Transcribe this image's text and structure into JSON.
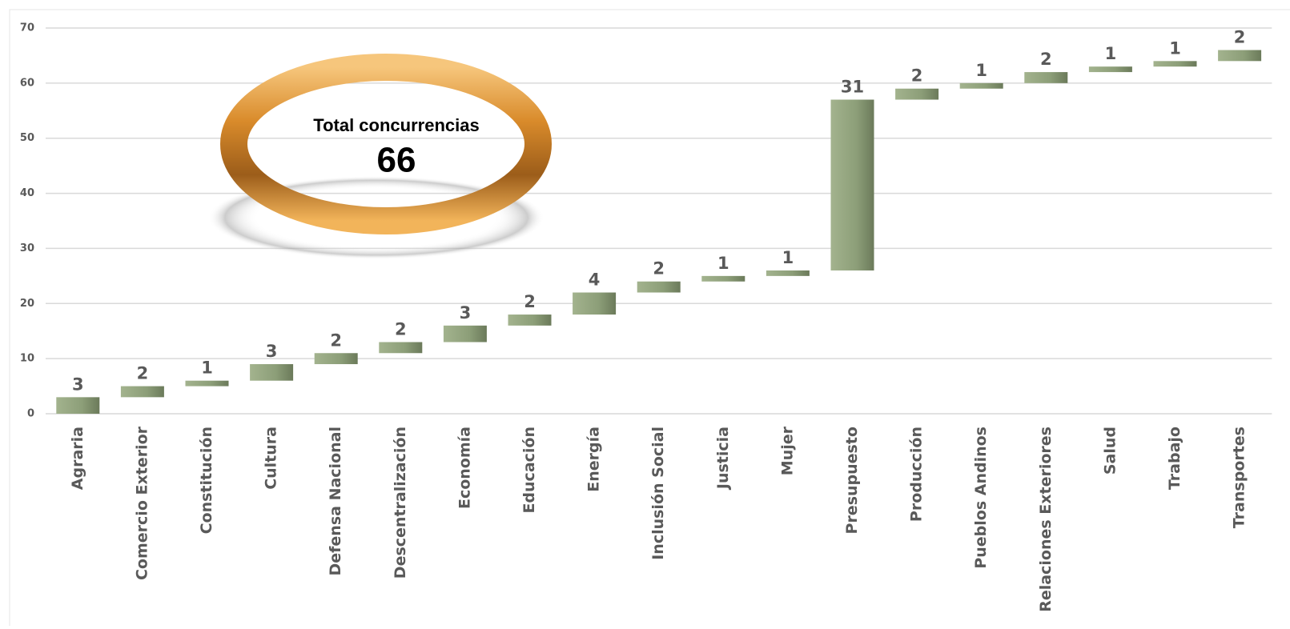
{
  "chart_data": {
    "type": "waterfall",
    "categories": [
      "Agraria",
      "Comercio Exterior",
      "Constitución",
      "Cultura",
      "Defensa Nacional",
      "Descentralización",
      "Economía",
      "Educación",
      "Energía",
      "Inclusión Social",
      "Justicia",
      "Mujer",
      "Presupuesto",
      "Producción",
      "Pueblos Andinos",
      "Relaciones Exteriores",
      "Salud",
      "Trabajo",
      "Transportes"
    ],
    "values": [
      3,
      2,
      1,
      3,
      2,
      2,
      3,
      2,
      4,
      2,
      1,
      1,
      31,
      2,
      1,
      2,
      1,
      1,
      2
    ],
    "color": "#8c9e78",
    "ylim": [
      0,
      70
    ],
    "yticks": [
      0,
      10,
      20,
      30,
      40,
      50,
      60,
      70
    ],
    "grid": true,
    "annotation": {
      "title": "Total concurrencias",
      "value": 66
    }
  }
}
